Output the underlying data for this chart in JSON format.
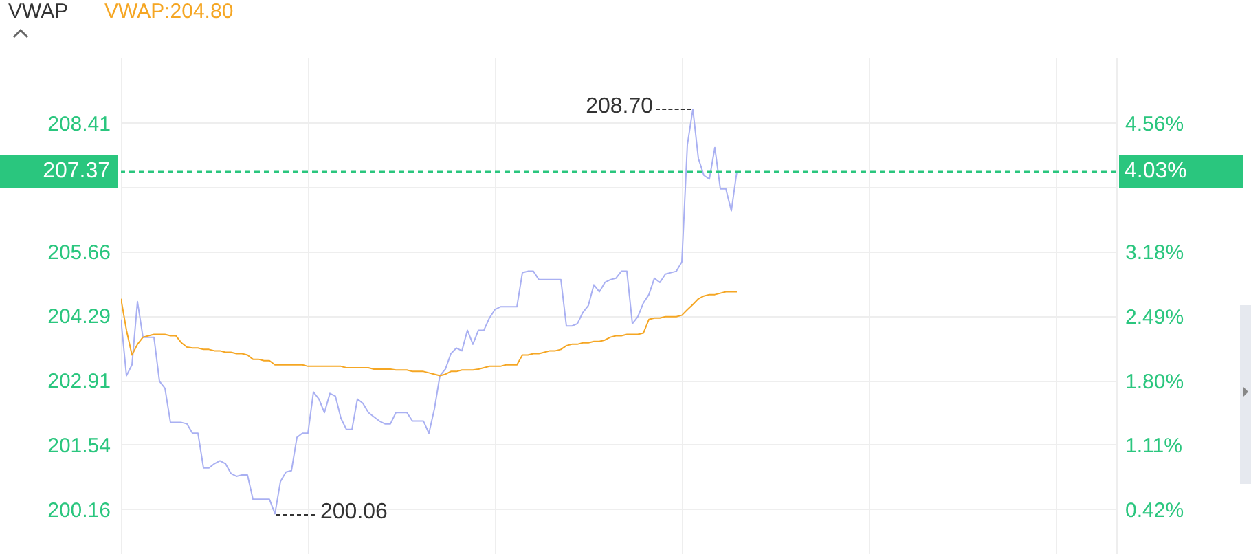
{
  "chart_data": {
    "type": "line",
    "title": "VWAP",
    "legend": "top left",
    "grid": true,
    "categories": [
      null,
      null,
      null,
      null,
      null,
      null,
      null,
      null,
      null,
      null,
      null,
      null,
      null,
      null,
      null,
      null,
      null,
      null,
      null,
      null,
      null,
      null,
      null,
      null,
      null,
      null,
      null,
      null,
      null,
      null,
      null,
      null,
      null,
      null,
      null,
      null,
      null,
      null,
      null,
      null,
      null,
      null,
      null,
      null,
      null,
      null,
      null,
      null,
      null,
      null,
      null,
      null,
      null,
      null,
      null,
      null,
      null,
      null,
      null,
      null,
      null,
      null,
      null,
      null,
      null,
      null,
      null,
      null,
      null,
      null,
      null,
      null,
      null,
      null,
      null,
      null,
      null,
      null,
      null,
      null,
      null,
      null,
      null,
      null,
      null,
      null,
      null,
      null,
      null,
      null,
      null,
      null,
      null,
      null,
      null,
      null,
      null,
      null,
      null,
      null,
      null,
      null,
      null,
      null,
      null,
      null,
      null,
      null,
      null,
      null,
      null,
      null,
      null,
      null,
      null,
      null,
      null,
      null,
      null,
      null,
      null,
      null,
      null,
      null,
      null,
      null,
      null,
      null,
      null,
      null,
      null,
      null,
      null,
      null,
      null,
      null,
      null,
      null,
      null,
      null,
      null,
      null,
      null,
      null,
      null,
      null,
      null,
      null,
      null,
      null,
      null,
      null,
      null,
      null,
      null,
      null,
      null,
      null,
      null,
      null,
      null,
      null,
      null,
      null,
      null,
      null,
      null,
      null,
      null,
      null,
      null,
      null,
      null,
      null,
      null,
      null,
      null,
      null,
      null,
      null,
      null,
      null
    ],
    "series": [
      {
        "type": "line",
        "color": "#a9b0f2",
        "values": [
          204.21,
          203.01,
          203.24,
          204.59,
          203.83,
          203.83,
          203.83,
          202.89,
          202.74,
          202.01,
          202.01,
          202.01,
          201.98,
          201.78,
          201.78,
          201.04,
          201.04,
          201.13,
          201.19,
          201.13,
          200.92,
          200.86,
          200.89,
          200.89,
          200.37,
          200.37,
          200.37,
          200.37,
          200.06,
          200.75,
          200.95,
          200.98,
          201.69,
          201.78,
          201.78,
          202.66,
          202.51,
          202.22,
          202.63,
          202.57,
          202.1,
          201.86,
          201.86,
          202.51,
          202.42,
          202.22,
          202.13,
          202.04,
          201.98,
          201.98,
          202.22,
          202.22,
          202.22,
          202.04,
          202.04,
          202.04,
          201.78,
          202.3,
          203.01,
          203.15,
          203.48,
          203.6,
          203.54,
          203.98,
          203.68,
          203.98,
          203.98,
          204.24,
          204.42,
          204.48,
          204.48,
          204.48,
          204.48,
          205.21,
          205.24,
          205.24,
          205.06,
          205.06,
          205.06,
          205.06,
          205.06,
          204.07,
          204.07,
          204.12,
          204.36,
          204.51,
          204.95,
          204.8,
          205.0,
          205.06,
          205.09,
          205.24,
          205.24,
          204.12,
          204.27,
          204.56,
          204.74,
          205.09,
          205.0,
          205.18,
          205.21,
          205.24,
          205.44,
          207.94,
          208.7,
          207.65,
          207.29,
          207.21,
          207.88,
          207.0,
          207.0,
          206.53,
          207.37,
          null,
          null,
          null,
          null,
          null,
          null,
          null,
          null,
          null,
          null,
          null,
          null,
          null,
          null,
          null,
          null,
          null,
          null,
          null,
          null,
          null,
          null,
          null,
          null,
          null,
          null,
          null,
          null,
          null,
          null,
          null,
          null,
          null,
          null,
          null,
          null,
          null,
          null,
          null,
          null,
          null,
          null,
          null,
          null,
          null,
          null,
          null,
          null,
          null,
          null,
          null,
          null,
          null,
          null,
          null,
          null,
          null,
          null,
          null,
          null,
          null,
          null,
          null,
          null,
          null,
          null,
          null,
          null,
          null
        ]
      },
      {
        "name": "VWAP:204.80",
        "type": "line",
        "color": "#f5a623",
        "values": [
          204.65,
          203.98,
          203.45,
          203.68,
          203.83,
          203.86,
          203.89,
          203.89,
          203.89,
          203.86,
          203.86,
          203.71,
          203.62,
          203.6,
          203.6,
          203.57,
          203.57,
          203.54,
          203.54,
          203.51,
          203.51,
          203.48,
          203.48,
          203.45,
          203.36,
          203.36,
          203.33,
          203.33,
          203.24,
          203.24,
          203.24,
          203.24,
          203.24,
          203.24,
          203.21,
          203.21,
          203.21,
          203.21,
          203.21,
          203.21,
          203.21,
          203.18,
          203.18,
          203.18,
          203.18,
          203.18,
          203.15,
          203.15,
          203.15,
          203.15,
          203.13,
          203.13,
          203.13,
          203.1,
          203.1,
          203.1,
          203.07,
          203.04,
          203.01,
          203.04,
          203.1,
          203.1,
          203.13,
          203.13,
          203.13,
          203.15,
          203.18,
          203.21,
          203.21,
          203.21,
          203.24,
          203.24,
          203.24,
          203.45,
          203.45,
          203.48,
          203.48,
          203.51,
          203.54,
          203.54,
          203.57,
          203.65,
          203.68,
          203.68,
          203.71,
          203.71,
          203.74,
          203.74,
          203.77,
          203.83,
          203.86,
          203.86,
          203.89,
          203.89,
          203.89,
          203.92,
          204.21,
          204.24,
          204.24,
          204.27,
          204.27,
          204.27,
          204.3,
          204.42,
          204.53,
          204.65,
          204.71,
          204.74,
          204.74,
          204.77,
          204.8,
          204.8,
          204.8,
          null,
          null,
          null,
          null,
          null,
          null,
          null,
          null,
          null,
          null,
          null,
          null,
          null,
          null,
          null,
          null,
          null,
          null,
          null,
          null,
          null,
          null,
          null,
          null,
          null,
          null,
          null,
          null,
          null,
          null,
          null,
          null,
          null,
          null,
          null,
          null,
          null,
          null,
          null,
          null,
          null,
          null,
          null,
          null,
          null,
          null,
          null,
          null,
          null,
          null,
          null,
          null,
          null,
          null,
          null,
          null,
          null,
          null,
          null,
          null,
          null,
          null,
          null,
          null,
          null,
          null,
          null,
          null,
          null
        ]
      }
    ],
    "ylim": [
      199.2,
      209.8
    ],
    "yticks": [
      {
        "value": 200.16,
        "label": "200.16"
      },
      {
        "value": 201.54,
        "label": "201.54"
      },
      {
        "value": 202.91,
        "label": "202.91"
      },
      {
        "value": 204.29,
        "label": "204.29"
      },
      {
        "value": 205.66,
        "label": "205.66"
      },
      {
        "value": 207.04,
        "label": null
      },
      {
        "value": 208.41,
        "label": "208.41"
      }
    ],
    "y2lim": [
      -0.06,
      5.26
    ],
    "y2ticks": [
      {
        "value": 0.42,
        "label": "0.42%"
      },
      {
        "value": 1.11,
        "label": "1.11%"
      },
      {
        "value": 1.8,
        "label": "1.80%"
      },
      {
        "value": 2.49,
        "label": "2.49%"
      },
      {
        "value": 3.18,
        "label": "3.18%"
      },
      {
        "value": 3.87,
        "label": null
      },
      {
        "value": 4.56,
        "label": "4.56%"
      }
    ],
    "ref_lines": [
      {
        "axis": "y",
        "value": 207.37,
        "label": "207.37",
        "color": "#2ac67e",
        "line_style": "dashed"
      },
      {
        "axis": "y2",
        "value": 4.03,
        "label": "4.03%",
        "color": "#2ac67e",
        "line_style": "dashed"
      }
    ],
    "annotations": [
      "208.70",
      "200.06"
    ]
  }
}
